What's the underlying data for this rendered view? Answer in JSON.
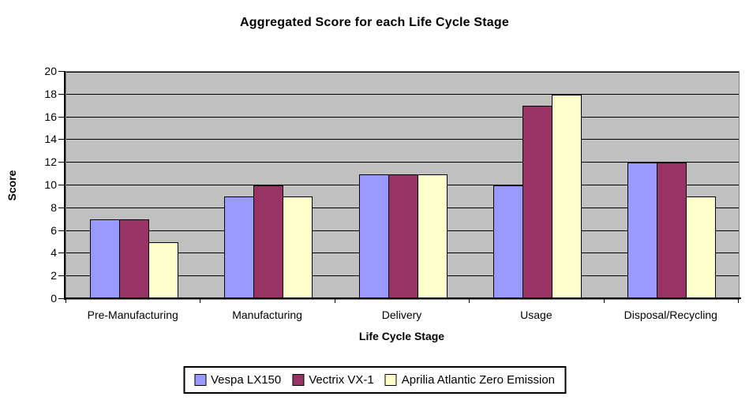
{
  "chart_data": {
    "type": "bar",
    "title": "Aggregated Score for each Life Cycle Stage",
    "categories": [
      "Pre-Manufacturing",
      "Manufacturing",
      "Delivery",
      "Usage",
      "Disposal/Recycling"
    ],
    "series": [
      {
        "name": "Vespa LX150",
        "color": "#9999FF",
        "values": [
          7,
          9,
          11,
          10,
          12
        ]
      },
      {
        "name": "Vectrix VX-1",
        "color": "#993366",
        "values": [
          7,
          10,
          11,
          17,
          12
        ]
      },
      {
        "name": "Aprilia Atlantic Zero Emission",
        "color": "#FFFFCC",
        "values": [
          5,
          9,
          11,
          18,
          9
        ]
      }
    ],
    "xlabel": "Life Cycle Stage",
    "ylabel": "Score",
    "ylim": [
      0,
      20
    ],
    "ytick_step": 2,
    "grid": true,
    "legend_position": "bottom",
    "plot_bg_color": "#C0C0C0",
    "gridline_color": "#000000",
    "bar_border_color": "#000000"
  }
}
